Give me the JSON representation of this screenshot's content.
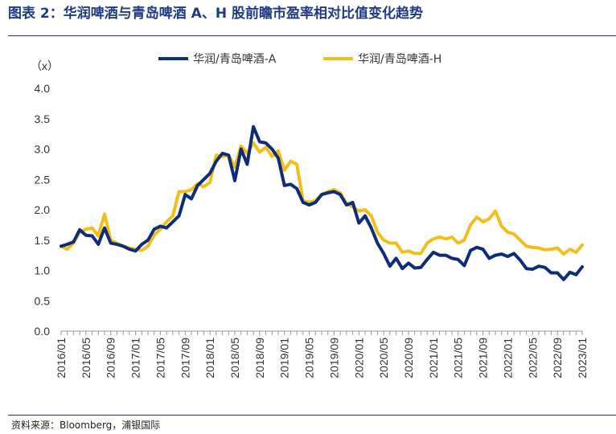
{
  "header": {
    "title": "图表 2：华润啤酒与青岛啤酒 A、H 股前瞻市盈率相对比值变化趋势"
  },
  "footer": {
    "source": "资料来源：Bloomberg，浦银国际"
  },
  "colors": {
    "series_a": "#0d2d7a",
    "series_h": "#f2be1a",
    "rule": "#2d2d5a",
    "title": "#1f3b86"
  },
  "chart_data": {
    "type": "line",
    "ylabel": "（x）",
    "xlabel": "",
    "ylim": [
      0,
      4.0
    ],
    "yticks": [
      "0.0",
      "0.5",
      "1.0",
      "1.5",
      "2.0",
      "2.5",
      "3.0",
      "3.5",
      "4.0"
    ],
    "grid": false,
    "legend_position": "top",
    "xtick_labels": [
      "2016/01",
      "2016/05",
      "2016/09",
      "2017/01",
      "2017/05",
      "2017/09",
      "2018/01",
      "2018/05",
      "2018/09",
      "2019/01",
      "2019/05",
      "2019/09",
      "2020/01",
      "2020/05",
      "2020/09",
      "2021/01",
      "2021/05",
      "2021/09",
      "2022/01",
      "2022/05",
      "2022/09",
      "2023/01"
    ],
    "x": [
      "2016/01",
      "2016/02",
      "2016/03",
      "2016/04",
      "2016/05",
      "2016/06",
      "2016/07",
      "2016/08",
      "2016/09",
      "2016/10",
      "2016/11",
      "2016/12",
      "2017/01",
      "2017/02",
      "2017/03",
      "2017/04",
      "2017/05",
      "2017/06",
      "2017/07",
      "2017/08",
      "2017/09",
      "2017/10",
      "2017/11",
      "2017/12",
      "2018/01",
      "2018/02",
      "2018/03",
      "2018/04",
      "2018/05",
      "2018/06",
      "2018/07",
      "2018/08",
      "2018/09",
      "2018/10",
      "2018/11",
      "2018/12",
      "2019/01",
      "2019/02",
      "2019/03",
      "2019/04",
      "2019/05",
      "2019/06",
      "2019/07",
      "2019/08",
      "2019/09",
      "2019/10",
      "2019/11",
      "2019/12",
      "2020/01",
      "2020/02",
      "2020/03",
      "2020/04",
      "2020/05",
      "2020/06",
      "2020/07",
      "2020/08",
      "2020/09",
      "2020/10",
      "2020/11",
      "2020/12",
      "2021/01",
      "2021/02",
      "2021/03",
      "2021/04",
      "2021/05",
      "2021/06",
      "2021/07",
      "2021/08",
      "2021/09",
      "2021/10",
      "2021/11",
      "2021/12",
      "2022/01",
      "2022/02",
      "2022/03",
      "2022/04",
      "2022/05",
      "2022/06",
      "2022/07",
      "2022/08",
      "2022/09",
      "2022/10",
      "2022/11",
      "2022/12",
      "2023/01"
    ],
    "series": [
      {
        "name": "华润/青岛啤酒-A",
        "values": [
          1.4,
          1.43,
          1.47,
          1.67,
          1.58,
          1.57,
          1.43,
          1.7,
          1.45,
          1.43,
          1.4,
          1.35,
          1.32,
          1.43,
          1.5,
          1.68,
          1.73,
          1.7,
          1.8,
          1.9,
          2.25,
          2.18,
          2.4,
          2.5,
          2.6,
          2.8,
          2.93,
          2.9,
          2.48,
          3.0,
          2.75,
          3.37,
          3.12,
          3.1,
          3.0,
          2.85,
          2.4,
          2.42,
          2.35,
          2.12,
          2.08,
          2.12,
          2.25,
          2.28,
          2.3,
          2.25,
          2.08,
          2.12,
          1.78,
          1.9,
          1.7,
          1.45,
          1.28,
          1.07,
          1.2,
          1.03,
          1.12,
          1.04,
          1.05,
          1.18,
          1.3,
          1.25,
          1.25,
          1.2,
          1.18,
          1.08,
          1.33,
          1.38,
          1.35,
          1.2,
          1.25,
          1.27,
          1.23,
          1.28,
          1.17,
          1.03,
          1.02,
          1.07,
          1.05,
          0.96,
          0.96,
          0.85,
          0.97,
          0.93,
          1.06
        ]
      },
      {
        "name": "华润/青岛啤酒-H",
        "values": [
          1.4,
          1.35,
          1.45,
          1.63,
          1.68,
          1.7,
          1.57,
          1.93,
          1.5,
          1.45,
          1.4,
          1.37,
          1.35,
          1.33,
          1.4,
          1.58,
          1.68,
          1.8,
          1.9,
          2.3,
          2.3,
          2.33,
          2.43,
          2.38,
          2.45,
          2.9,
          2.88,
          2.9,
          2.7,
          3.05,
          2.93,
          3.1,
          2.95,
          3.03,
          2.88,
          2.97,
          2.65,
          2.8,
          2.75,
          2.15,
          2.12,
          2.15,
          2.25,
          2.3,
          2.33,
          2.28,
          2.1,
          2.05,
          1.98,
          2.0,
          1.9,
          1.63,
          1.5,
          1.45,
          1.45,
          1.3,
          1.32,
          1.28,
          1.28,
          1.45,
          1.52,
          1.55,
          1.52,
          1.55,
          1.45,
          1.5,
          1.75,
          1.88,
          1.8,
          1.85,
          1.98,
          1.73,
          1.63,
          1.6,
          1.5,
          1.4,
          1.38,
          1.37,
          1.34,
          1.35,
          1.37,
          1.27,
          1.35,
          1.3,
          1.42
        ]
      }
    ]
  }
}
